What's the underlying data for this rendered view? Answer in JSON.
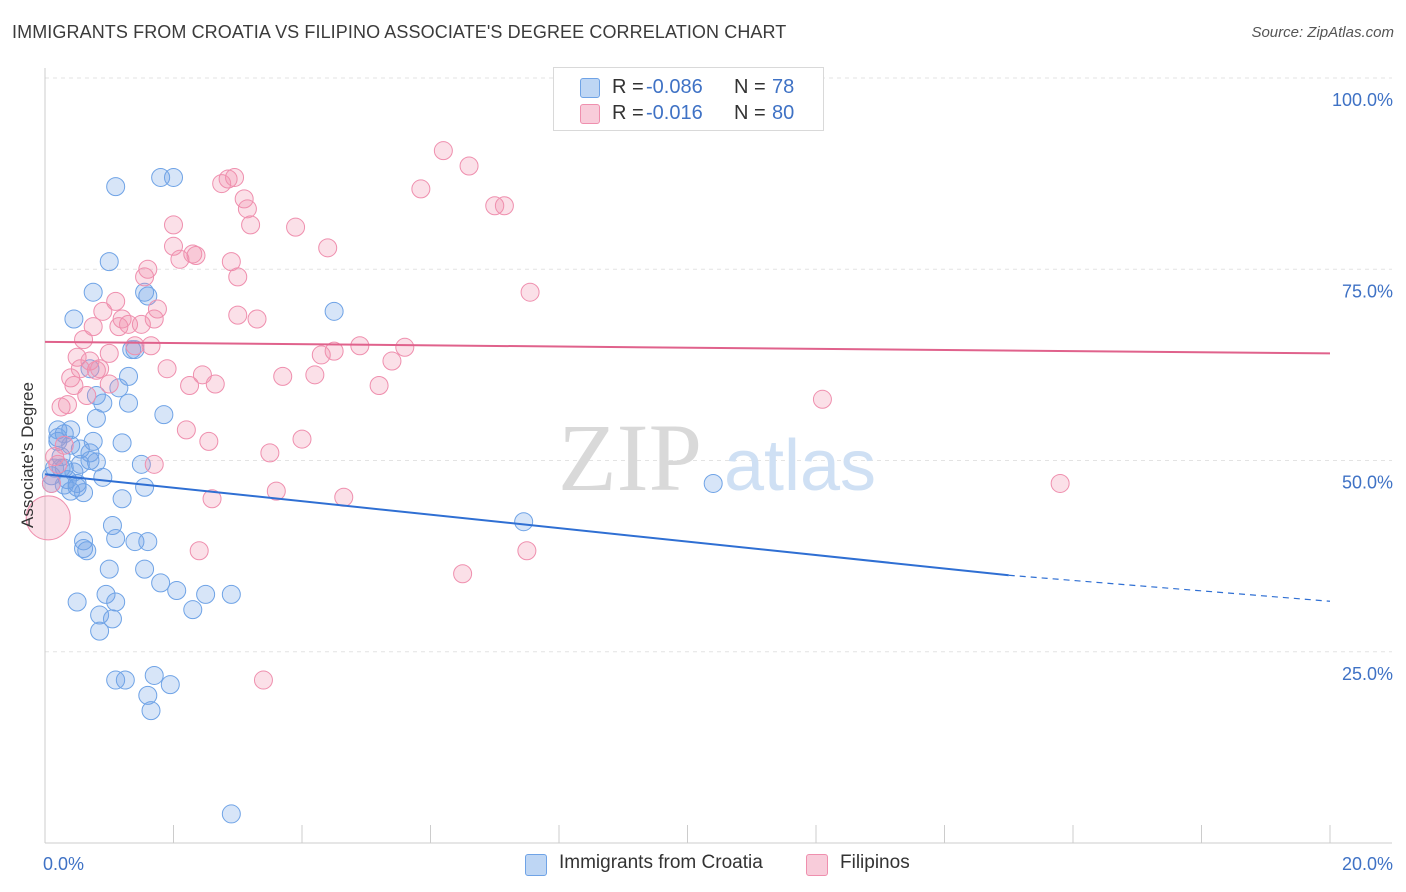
{
  "title": "IMMIGRANTS FROM CROATIA VS FILIPINO ASSOCIATE'S DEGREE CORRELATION CHART",
  "source": "Source: ZipAtlas.com",
  "watermark": {
    "zip": "ZIP",
    "atlas": "atlas"
  },
  "legend_top": [
    {
      "r_label": "R =",
      "r_value": "-0.086",
      "n_label": "N =",
      "n_value": "78",
      "color": "#6fa3e6"
    },
    {
      "r_label": "R =",
      "r_value": "-0.016",
      "n_label": "N =",
      "n_value": "80",
      "color": "#ef8fae"
    }
  ],
  "legend_bottom": [
    {
      "label": "Immigrants from Croatia",
      "color": "#6fa3e6"
    },
    {
      "label": "Filipinos",
      "color": "#ef8fae"
    }
  ],
  "chart_data": {
    "type": "scatter",
    "title": "IMMIGRANTS FROM CROATIA VS FILIPINO ASSOCIATE'S DEGREE CORRELATION CHART",
    "xlabel": "",
    "ylabel": "Associate's Degree",
    "xlim": [
      0,
      20
    ],
    "ylim": [
      0,
      100
    ],
    "x_tick_labels": [
      {
        "value": 0,
        "label": "0.0%"
      },
      {
        "value": 20,
        "label": "20.0%"
      }
    ],
    "y_tick_labels": [
      {
        "value": 25,
        "label": "25.0%"
      },
      {
        "value": 50,
        "label": "50.0%"
      },
      {
        "value": 75,
        "label": "75.0%"
      },
      {
        "value": 100,
        "label": "100.0%"
      }
    ],
    "grid": true,
    "legend_position": "top-center",
    "series": [
      {
        "name": "Immigrants from Croatia",
        "color": "#6fa3e6",
        "R": -0.086,
        "N": 78,
        "trend": {
          "x0": 0,
          "y0": 48.2,
          "x1": 15.0,
          "y1": 35.0,
          "dashed_to_x": 20,
          "dashed_to_y": 31.6
        },
        "points": [
          [
            0.1,
            47.0
          ],
          [
            0.1,
            48.0
          ],
          [
            0.15,
            49.0
          ],
          [
            0.2,
            53.0
          ],
          [
            0.2,
            52.5
          ],
          [
            0.25,
            50.5
          ],
          [
            0.3,
            53.5
          ],
          [
            0.3,
            49.0
          ],
          [
            0.35,
            47.5
          ],
          [
            0.4,
            54.0
          ],
          [
            0.4,
            46.0
          ],
          [
            0.45,
            48.5
          ],
          [
            0.5,
            47.0
          ],
          [
            0.55,
            49.5
          ],
          [
            0.55,
            51.5
          ],
          [
            0.6,
            45.8
          ],
          [
            0.7,
            51.0
          ],
          [
            0.7,
            50.0
          ],
          [
            0.75,
            52.5
          ],
          [
            0.8,
            49.8
          ],
          [
            0.6,
            39.5
          ],
          [
            0.6,
            38.5
          ],
          [
            0.65,
            38.2
          ],
          [
            0.5,
            31.5
          ],
          [
            0.45,
            68.5
          ],
          [
            0.7,
            62.0
          ],
          [
            0.75,
            72.0
          ],
          [
            0.8,
            58.5
          ],
          [
            0.8,
            55.5
          ],
          [
            0.85,
            29.8
          ],
          [
            0.85,
            27.7
          ],
          [
            0.9,
            57.5
          ],
          [
            1.0,
            76.0
          ],
          [
            1.0,
            35.8
          ],
          [
            0.95,
            32.5
          ],
          [
            1.05,
            41.5
          ],
          [
            1.1,
            39.8
          ],
          [
            1.1,
            31.5
          ],
          [
            1.05,
            29.3
          ],
          [
            1.15,
            59.5
          ],
          [
            1.2,
            52.3
          ],
          [
            1.2,
            45.0
          ],
          [
            1.1,
            21.3
          ],
          [
            1.25,
            21.3
          ],
          [
            1.3,
            61.0
          ],
          [
            1.3,
            57.5
          ],
          [
            1.35,
            64.5
          ],
          [
            1.4,
            39.4
          ],
          [
            1.5,
            49.5
          ],
          [
            1.55,
            46.5
          ],
          [
            1.55,
            35.8
          ],
          [
            1.6,
            39.4
          ],
          [
            1.6,
            19.3
          ],
          [
            1.65,
            17.3
          ],
          [
            1.7,
            21.9
          ],
          [
            1.8,
            34.0
          ],
          [
            1.85,
            56.0
          ],
          [
            1.95,
            20.7
          ],
          [
            2.0,
            87.0
          ],
          [
            2.05,
            33.0
          ],
          [
            2.3,
            30.5
          ],
          [
            2.5,
            32.5
          ],
          [
            2.9,
            32.5
          ],
          [
            1.1,
            85.8
          ],
          [
            1.8,
            87.0
          ],
          [
            1.6,
            71.5
          ],
          [
            1.55,
            72.0
          ],
          [
            1.4,
            64.5
          ],
          [
            0.4,
            52.0
          ],
          [
            0.2,
            54.0
          ],
          [
            0.3,
            46.8
          ],
          [
            0.5,
            46.5
          ],
          [
            4.5,
            69.5
          ],
          [
            7.45,
            42.0
          ],
          [
            10.4,
            47.0
          ],
          [
            2.9,
            3.8
          ],
          [
            0.25,
            49.0
          ],
          [
            0.9,
            47.8
          ]
        ]
      },
      {
        "name": "Filipinos",
        "color": "#ef8fae",
        "R": -0.016,
        "N": 80,
        "trend": {
          "x0": 0,
          "y0": 65.5,
          "x1": 20,
          "y1": 64.0
        },
        "points": [
          [
            0.05,
            42.5
          ],
          [
            0.1,
            47.0
          ],
          [
            0.15,
            50.5
          ],
          [
            0.2,
            49.5
          ],
          [
            0.25,
            57.0
          ],
          [
            0.3,
            52.0
          ],
          [
            0.35,
            57.3
          ],
          [
            0.4,
            60.8
          ],
          [
            0.45,
            59.8
          ],
          [
            0.5,
            63.5
          ],
          [
            0.55,
            62.0
          ],
          [
            0.6,
            65.8
          ],
          [
            0.7,
            63.0
          ],
          [
            0.75,
            67.5
          ],
          [
            0.8,
            61.8
          ],
          [
            0.85,
            62.0
          ],
          [
            0.9,
            69.5
          ],
          [
            1.0,
            64.0
          ],
          [
            1.1,
            70.8
          ],
          [
            1.15,
            67.5
          ],
          [
            1.2,
            68.5
          ],
          [
            1.3,
            67.8
          ],
          [
            1.4,
            65.0
          ],
          [
            1.5,
            67.8
          ],
          [
            1.55,
            74.0
          ],
          [
            1.65,
            65.0
          ],
          [
            1.7,
            68.5
          ],
          [
            1.75,
            69.8
          ],
          [
            1.6,
            75.0
          ],
          [
            1.9,
            62.0
          ],
          [
            2.0,
            80.8
          ],
          [
            2.0,
            78.0
          ],
          [
            2.1,
            76.3
          ],
          [
            2.2,
            54.0
          ],
          [
            2.3,
            77.0
          ],
          [
            2.35,
            76.8
          ],
          [
            2.25,
            59.8
          ],
          [
            2.45,
            61.2
          ],
          [
            2.55,
            52.5
          ],
          [
            2.6,
            45.0
          ],
          [
            2.65,
            60.0
          ],
          [
            2.75,
            86.2
          ],
          [
            2.85,
            86.8
          ],
          [
            2.95,
            87.0
          ],
          [
            2.9,
            76.0
          ],
          [
            3.0,
            74.0
          ],
          [
            3.0,
            69.0
          ],
          [
            3.1,
            84.2
          ],
          [
            3.15,
            82.9
          ],
          [
            3.2,
            80.8
          ],
          [
            3.3,
            68.5
          ],
          [
            3.5,
            51.0
          ],
          [
            3.6,
            46.0
          ],
          [
            3.7,
            61.0
          ],
          [
            3.9,
            80.5
          ],
          [
            4.0,
            52.8
          ],
          [
            4.2,
            61.2
          ],
          [
            4.3,
            63.8
          ],
          [
            4.4,
            77.8
          ],
          [
            4.5,
            64.3
          ],
          [
            4.65,
            45.2
          ],
          [
            4.9,
            65.0
          ],
          [
            5.2,
            59.8
          ],
          [
            5.4,
            63.0
          ],
          [
            5.6,
            64.8
          ],
          [
            5.85,
            85.5
          ],
          [
            6.2,
            90.5
          ],
          [
            6.5,
            35.2
          ],
          [
            6.6,
            88.5
          ],
          [
            7.0,
            83.3
          ],
          [
            7.15,
            83.3
          ],
          [
            7.5,
            38.2
          ],
          [
            7.55,
            72.0
          ],
          [
            2.4,
            38.2
          ],
          [
            3.4,
            21.3
          ],
          [
            12.1,
            58.0
          ],
          [
            15.8,
            47.0
          ],
          [
            1.7,
            49.5
          ],
          [
            0.65,
            58.5
          ],
          [
            1.0,
            60.0
          ]
        ]
      }
    ]
  }
}
